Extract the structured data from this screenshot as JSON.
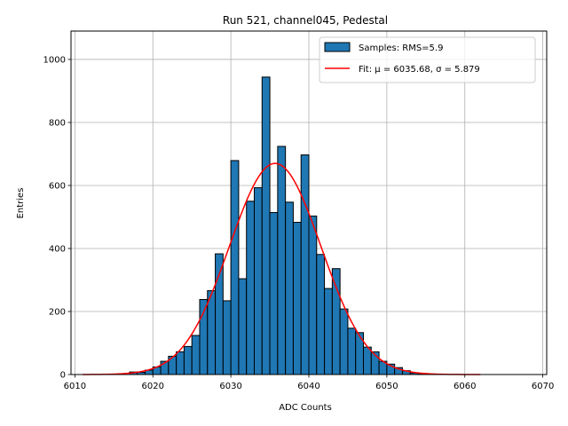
{
  "chart_data": {
    "type": "bar",
    "title": "Run 521, channel045, Pedestal",
    "xlabel": "ADC Counts",
    "ylabel": "Entries",
    "xlim": [
      6009.5,
      6070.5
    ],
    "ylim": [
      0,
      1090
    ],
    "xticks": [
      6010,
      6020,
      6030,
      6040,
      6050,
      6060,
      6070
    ],
    "yticks": [
      0,
      200,
      400,
      600,
      800,
      1000
    ],
    "grid": true,
    "bar_color": "#1f77b4",
    "bar_edge_color": "#000000",
    "fit_color": "#ff0000",
    "legend": {
      "placement": "top-right",
      "entries": [
        {
          "kind": "bar",
          "label": "Samples: RMS=5.9"
        },
        {
          "kind": "line",
          "label": "Fit: μ = 6035.68, σ = 5.879"
        }
      ]
    },
    "histogram": {
      "series_name": "Samples: RMS=5.9",
      "bin_width": 1,
      "bin_starts": [
        6017,
        6018,
        6019,
        6020,
        6021,
        6022,
        6023,
        6024,
        6025,
        6026,
        6027,
        6028,
        6029,
        6030,
        6031,
        6032,
        6033,
        6034,
        6035,
        6036,
        6037,
        6038,
        6039,
        6040,
        6041,
        6042,
        6043,
        6044,
        6045,
        6046,
        6047,
        6048,
        6049,
        6050,
        6051,
        6052,
        6053,
        6054
      ],
      "counts": [
        8,
        7,
        14,
        24,
        42,
        58,
        72,
        89,
        124,
        238,
        266,
        383,
        234,
        679,
        304,
        550,
        593,
        944,
        514,
        724,
        547,
        483,
        697,
        503,
        381,
        273,
        336,
        208,
        147,
        133,
        87,
        72,
        42,
        33,
        22,
        12,
        5,
        3
      ]
    },
    "fit": {
      "series_name": "Fit: μ = 6035.68, σ = 5.879",
      "mu": 6035.68,
      "sigma": 5.879,
      "amplitude": 670,
      "x_range": [
        6011,
        6062
      ]
    }
  }
}
